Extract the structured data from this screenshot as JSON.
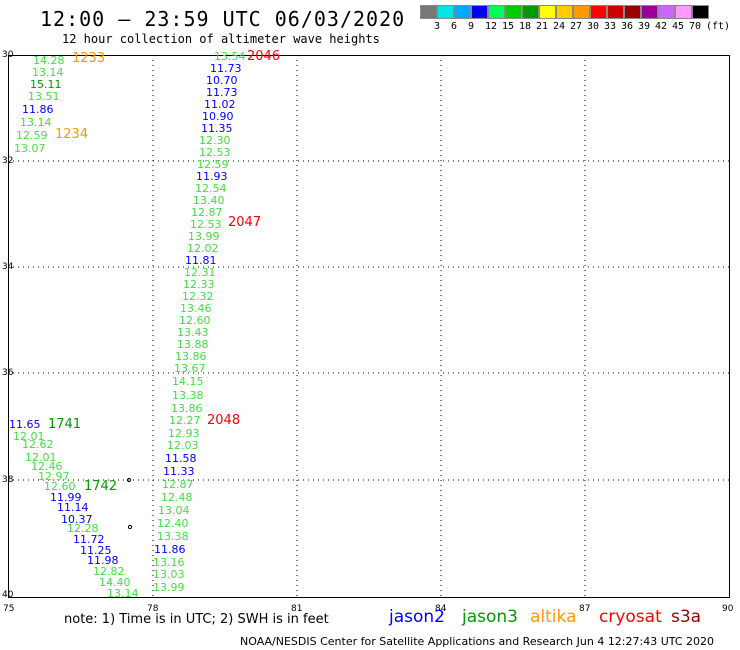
{
  "header": {
    "title": "12:00 – 23:59 UTC 06/03/2020",
    "subtitle": "12 hour collection of altimeter wave heights"
  },
  "scale": {
    "colors": [
      "#777777",
      "#00e5e5",
      "#00aaff",
      "#0000ff",
      "#00ff55",
      "#00cc00",
      "#009900",
      "#ffff00",
      "#ffcc00",
      "#ff9900",
      "#ff0000",
      "#cc0000",
      "#990000",
      "#990099",
      "#cc66ff",
      "#ff99ff",
      "#000000"
    ],
    "labels": [
      "3",
      "6",
      "9",
      "12",
      "15",
      "18",
      "21",
      "24",
      "27",
      "30",
      "33",
      "36",
      "39",
      "42",
      "45",
      "70",
      "(ft)"
    ]
  },
  "axes": {
    "lat_labels": [
      "30",
      "32",
      "34",
      "36",
      "38",
      "40"
    ],
    "lon_labels": [
      "75",
      "78",
      "81",
      "84",
      "87",
      "90"
    ]
  },
  "passes": [
    {
      "label": "1233",
      "color": "#ff9900"
    },
    {
      "label": "1234",
      "color": "#ff9900"
    },
    {
      "label": "2046",
      "color": "#ff0000"
    },
    {
      "label": "2047",
      "color": "#ff0000"
    },
    {
      "label": "2048",
      "color": "#ff0000"
    },
    {
      "label": "1741",
      "color": "#009900"
    },
    {
      "label": "1742",
      "color": "#009900"
    }
  ],
  "observations": [
    {
      "v": "14.28",
      "c": "#44dd44"
    },
    {
      "v": "13.14",
      "c": "#44dd44"
    },
    {
      "v": "15.11",
      "c": "#009900"
    },
    {
      "v": "13.51",
      "c": "#44dd44"
    },
    {
      "v": "11.86",
      "c": "#0000ff"
    },
    {
      "v": "13.14",
      "c": "#44dd44"
    },
    {
      "v": "12.59",
      "c": "#44dd44"
    },
    {
      "v": "13.07",
      "c": "#44dd44"
    },
    {
      "v": "13.54",
      "c": "#44dd44"
    },
    {
      "v": "11.73",
      "c": "#0000ff"
    },
    {
      "v": "10.70",
      "c": "#0000ff"
    },
    {
      "v": "11.73",
      "c": "#0000ff"
    },
    {
      "v": "11.02",
      "c": "#0000ff"
    },
    {
      "v": "10.90",
      "c": "#0000ff"
    },
    {
      "v": "11.35",
      "c": "#0000ff"
    },
    {
      "v": "12.30",
      "c": "#44dd44"
    },
    {
      "v": "12.53",
      "c": "#44dd44"
    },
    {
      "v": "12.59",
      "c": "#44dd44"
    },
    {
      "v": "11.93",
      "c": "#0000ff"
    },
    {
      "v": "12.54",
      "c": "#44dd44"
    },
    {
      "v": "13.40",
      "c": "#44dd44"
    },
    {
      "v": "12.87",
      "c": "#44dd44"
    },
    {
      "v": "12.53",
      "c": "#44dd44"
    },
    {
      "v": "13.99",
      "c": "#44dd44"
    },
    {
      "v": "12.02",
      "c": "#44dd44"
    },
    {
      "v": "11.81",
      "c": "#0000ff"
    },
    {
      "v": "12.31",
      "c": "#44dd44"
    },
    {
      "v": "12.33",
      "c": "#44dd44"
    },
    {
      "v": "12.32",
      "c": "#44dd44"
    },
    {
      "v": "13.46",
      "c": "#44dd44"
    },
    {
      "v": "12.60",
      "c": "#44dd44"
    },
    {
      "v": "13.43",
      "c": "#44dd44"
    },
    {
      "v": "13.88",
      "c": "#44dd44"
    },
    {
      "v": "13.86",
      "c": "#44dd44"
    },
    {
      "v": "13.67",
      "c": "#44dd44"
    },
    {
      "v": "14.15",
      "c": "#44dd44"
    },
    {
      "v": "13.38",
      "c": "#44dd44"
    },
    {
      "v": "13.86",
      "c": "#44dd44"
    },
    {
      "v": "12.27",
      "c": "#44dd44"
    },
    {
      "v": "12.93",
      "c": "#44dd44"
    },
    {
      "v": "12.03",
      "c": "#44dd44"
    },
    {
      "v": "11.58",
      "c": "#0000ff"
    },
    {
      "v": "11.33",
      "c": "#0000ff"
    },
    {
      "v": "12.87",
      "c": "#44dd44"
    },
    {
      "v": "12.48",
      "c": "#44dd44"
    },
    {
      "v": "13.04",
      "c": "#44dd44"
    },
    {
      "v": "12.40",
      "c": "#44dd44"
    },
    {
      "v": "13.38",
      "c": "#44dd44"
    },
    {
      "v": "11.86",
      "c": "#0000ff"
    },
    {
      "v": "13.16",
      "c": "#44dd44"
    },
    {
      "v": "13.03",
      "c": "#44dd44"
    },
    {
      "v": "13.99",
      "c": "#44dd44"
    },
    {
      "v": "11.65",
      "c": "#0000ff"
    },
    {
      "v": "12.01",
      "c": "#44dd44"
    },
    {
      "v": "12.62",
      "c": "#44dd44"
    },
    {
      "v": "12.01",
      "c": "#44dd44"
    },
    {
      "v": "12.46",
      "c": "#44dd44"
    },
    {
      "v": "12.97",
      "c": "#44dd44"
    },
    {
      "v": "12.60",
      "c": "#44dd44"
    },
    {
      "v": "11.99",
      "c": "#0000ff"
    },
    {
      "v": "11.14",
      "c": "#0000ff"
    },
    {
      "v": "10.37",
      "c": "#0000ff"
    },
    {
      "v": "12.28",
      "c": "#44dd44"
    },
    {
      "v": "11.72",
      "c": "#0000ff"
    },
    {
      "v": "11.25",
      "c": "#0000ff"
    },
    {
      "v": "11.98",
      "c": "#0000ff"
    },
    {
      "v": "12.82",
      "c": "#44dd44"
    },
    {
      "v": "14.40",
      "c": "#44dd44"
    },
    {
      "v": "13.14",
      "c": "#44dd44"
    }
  ],
  "note": "note:  1) Time is in UTC;  2) SWH is in feet",
  "legend": [
    {
      "label": "jason2",
      "color": "#0000ff"
    },
    {
      "label": "jason3",
      "color": "#009900"
    },
    {
      "label": "altika",
      "color": "#ff9900"
    },
    {
      "label": "cryosat",
      "color": "#ff0000"
    },
    {
      "label": "s3a",
      "color": "#990000"
    }
  ],
  "footer": "NOAA/NESDIS Center for Satellite Applications and Research     Jun  4 12:27:43 UTC 2020"
}
